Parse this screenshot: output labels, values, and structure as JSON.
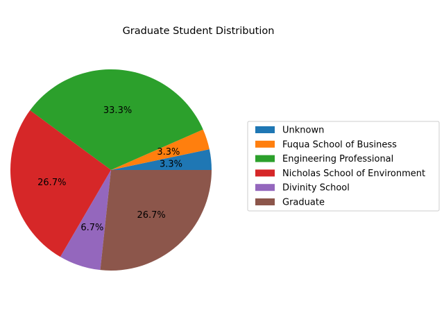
{
  "chart_data": {
    "type": "pie",
    "title": "Graduate Student Distribution",
    "start_angle_deg": 0,
    "direction": "counterclockwise",
    "legend_placement": "right",
    "slices": [
      {
        "label": "Unknown",
        "percent": 3.3,
        "color": "#1f77b4"
      },
      {
        "label": "Fuqua School of Business",
        "percent": 3.3,
        "color": "#ff7f0e"
      },
      {
        "label": "Engineering Professional",
        "percent": 33.3,
        "color": "#2ca02c"
      },
      {
        "label": "Nicholas School of Environment",
        "percent": 26.7,
        "color": "#d62728"
      },
      {
        "label": "Divinity School",
        "percent": 6.7,
        "color": "#9467bd"
      },
      {
        "label": "Graduate",
        "percent": 26.7,
        "color": "#8c564b"
      }
    ]
  }
}
